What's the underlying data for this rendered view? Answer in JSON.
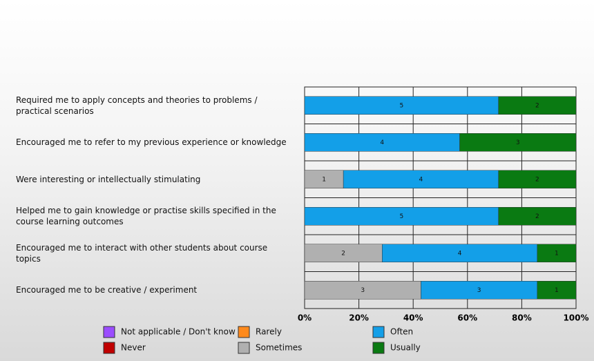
{
  "chart_data": {
    "type": "stacked_bar_100",
    "categories": [
      "Required me to apply concepts and theories to problems / practical scenarios",
      "Encouraged me to refer to my previous experience or knowledge",
      "Were interesting or intellectually stimulating",
      "Helped me to gain knowledge or practise skills specified in the course learning outcomes",
      "Encouraged me to interact with other students about course topics",
      "Encouraged me to be creative / experiment"
    ],
    "series": [
      {
        "name": "Not applicable / Don't know",
        "color": "#9b4dff",
        "values": [
          0,
          0,
          0,
          0,
          0,
          0
        ]
      },
      {
        "name": "Never",
        "color": "#c00000",
        "values": [
          0,
          0,
          0,
          0,
          0,
          0
        ]
      },
      {
        "name": "Rarely",
        "color": "#ff8a1c",
        "values": [
          0,
          0,
          0,
          0,
          0,
          0
        ]
      },
      {
        "name": "Sometimes",
        "color": "#b0b0b0",
        "values": [
          0,
          0,
          1,
          0,
          2,
          3
        ]
      },
      {
        "name": "Often",
        "color": "#139fe8",
        "values": [
          5,
          4,
          4,
          5,
          4,
          3
        ]
      },
      {
        "name": "Usually",
        "color": "#0a7a12",
        "values": [
          2,
          3,
          2,
          2,
          1,
          1
        ]
      }
    ],
    "xlim": [
      0,
      100
    ],
    "xticks": [
      {
        "value": 0,
        "label": "0%"
      },
      {
        "value": 20,
        "label": "20%"
      },
      {
        "value": 40,
        "label": "40%"
      },
      {
        "value": 60,
        "label": "60%"
      },
      {
        "value": 80,
        "label": "80%"
      },
      {
        "value": 100,
        "label": "100%"
      }
    ],
    "grid": true
  }
}
